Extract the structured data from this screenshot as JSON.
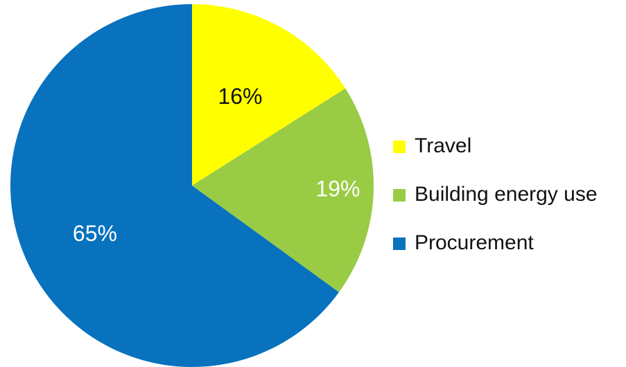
{
  "chart_data": {
    "type": "pie",
    "title": "",
    "start_angle_deg": 0,
    "direction": "clockwise",
    "legend_position": "right",
    "slices": [
      {
        "label": "Travel",
        "value": 16,
        "data_label": "16%",
        "color": "#FFFF00",
        "label_color": "#111111"
      },
      {
        "label": "Building energy use",
        "value": 19,
        "data_label": "19%",
        "color": "#99CC44",
        "label_color": "#FFFFFF"
      },
      {
        "label": "Procurement",
        "value": 65,
        "data_label": "65%",
        "color": "#0872BE",
        "label_color": "#FFFFFF"
      }
    ]
  }
}
